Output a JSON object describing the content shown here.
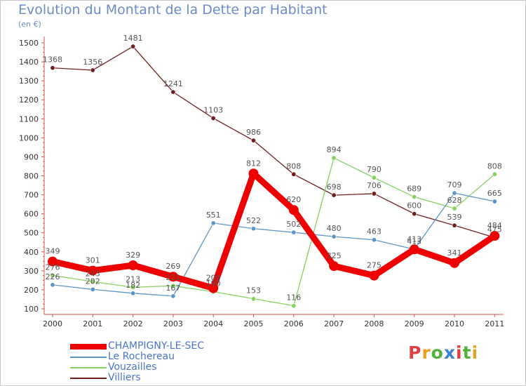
{
  "title": "Evolution du Montant de la Dette par Habitant",
  "unit_label": "(en €)",
  "logo_text": "Proxiti",
  "chart_data": {
    "type": "line",
    "title": "Evolution du Montant de la Dette par Habitant",
    "ylabel": "(en €)",
    "xlabel": "",
    "x": [
      "2000",
      "2001",
      "2002",
      "2003",
      "2004",
      "2005",
      "2006",
      "2007",
      "2008",
      "2009",
      "2010",
      "2011"
    ],
    "ylim": [
      100,
      1500
    ],
    "yticks": [
      100,
      200,
      300,
      400,
      500,
      600,
      700,
      800,
      900,
      1000,
      1100,
      1200,
      1300,
      1400,
      1500
    ],
    "grid": false,
    "legend": "bottom-left",
    "series": [
      {
        "name": "CHAMPIGNY-LE-SEC",
        "color": "#ee0000",
        "values": [
          349,
          301,
          329,
          269,
          209,
          812,
          620,
          325,
          275,
          413,
          341,
          484
        ],
        "labels": [
          "349",
          "301",
          "329",
          "269",
          "209",
          "812",
          "620",
          "325",
          "275",
          "413",
          "341",
          "484"
        ]
      },
      {
        "name": "Le Rochereau",
        "color": "#5a96c8",
        "values": [
          226,
          202,
          182,
          167,
          551,
          522,
          502,
          480,
          463,
          413,
          709,
          665
        ],
        "labels": [
          "226",
          "202",
          "182",
          "167",
          "551",
          "522",
          "502",
          "480",
          "463",
          "413",
          "709",
          "665"
        ]
      },
      {
        "name": "Vouzailles",
        "color": "#88d060",
        "values": [
          276,
          243,
          213,
          221,
          190,
          153,
          116,
          894,
          790,
          689,
          628,
          808
        ],
        "labels": [
          "276",
          "243",
          "213",
          "221",
          "190",
          "153",
          "116",
          "894",
          "790",
          "689",
          "628",
          "808"
        ]
      },
      {
        "name": "Villiers",
        "color": "#6e2020",
        "values": [
          1368,
          1356,
          1481,
          1241,
          1103,
          986,
          808,
          698,
          706,
          600,
          539,
          475
        ],
        "labels": [
          "1368",
          "1356",
          "1481",
          "1241",
          "1103",
          "986",
          "808",
          "698",
          "706",
          "600",
          "539",
          "475"
        ]
      }
    ]
  },
  "colors": {
    "axis": "#d05050",
    "tick_text": "#333333",
    "label_text": "#555555",
    "title": "#6a8cc8",
    "legend_text": "#4a74c8",
    "logo": [
      "#e04040",
      "#e8a020",
      "#50b040",
      "#4080d0",
      "#e04040",
      "#50b040",
      "#e8a020"
    ]
  }
}
